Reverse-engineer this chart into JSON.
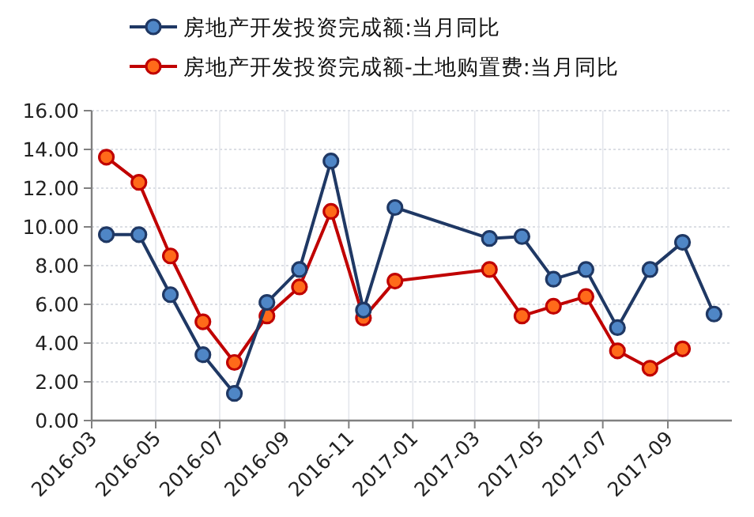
{
  "chart_data": {
    "type": "line",
    "x": [
      "2016-03-15",
      "2016-04-15",
      "2016-05-15",
      "2016-06-15",
      "2016-07-15",
      "2016-08-15",
      "2016-09-15",
      "2016-10-15",
      "2016-11-15",
      "2016-12-15",
      "2017-03-15",
      "2017-04-15",
      "2017-05-15",
      "2017-06-15",
      "2017-07-15",
      "2017-08-15",
      "2017-09-15",
      "2017-10-15"
    ],
    "series": [
      {
        "name": "房地产开发投资完成额:当月同比",
        "color": "#1f3864",
        "values": [
          9.6,
          9.6,
          6.5,
          3.4,
          1.4,
          6.1,
          7.8,
          13.4,
          5.7,
          11.0,
          9.4,
          9.5,
          7.3,
          7.8,
          4.8,
          7.8,
          9.2,
          5.5
        ]
      },
      {
        "name": "房地产开发投资完成额-土地购置费:当月同比",
        "color": "#c00000",
        "values": [
          13.6,
          12.3,
          8.5,
          5.1,
          3.0,
          5.4,
          6.9,
          10.8,
          5.3,
          7.2,
          7.8,
          5.4,
          5.9,
          6.4,
          3.6,
          2.7,
          3.7,
          null
        ]
      }
    ],
    "xlim": [
      "2016-03",
      "2017-11"
    ],
    "xticks": [
      "2016-03",
      "2016-05",
      "2016-07",
      "2016-09",
      "2016-11",
      "2017-01",
      "2017-03",
      "2017-05",
      "2017-07",
      "2017-09"
    ],
    "ylim": [
      0,
      16
    ],
    "yticks": [
      {
        "value": 0,
        "label": "0.00"
      },
      {
        "value": 2,
        "label": "2.00"
      },
      {
        "value": 4,
        "label": "4.00"
      },
      {
        "value": 6,
        "label": "6.00"
      },
      {
        "value": 8,
        "label": "8.00"
      },
      {
        "value": 10,
        "label": "10.00"
      },
      {
        "value": 12,
        "label": "12.00"
      },
      {
        "value": 14,
        "label": "14.00"
      },
      {
        "value": 16,
        "label": "16.00"
      }
    ],
    "grid": true,
    "legend": "top",
    "marker": "circle",
    "line_style": "solid"
  }
}
